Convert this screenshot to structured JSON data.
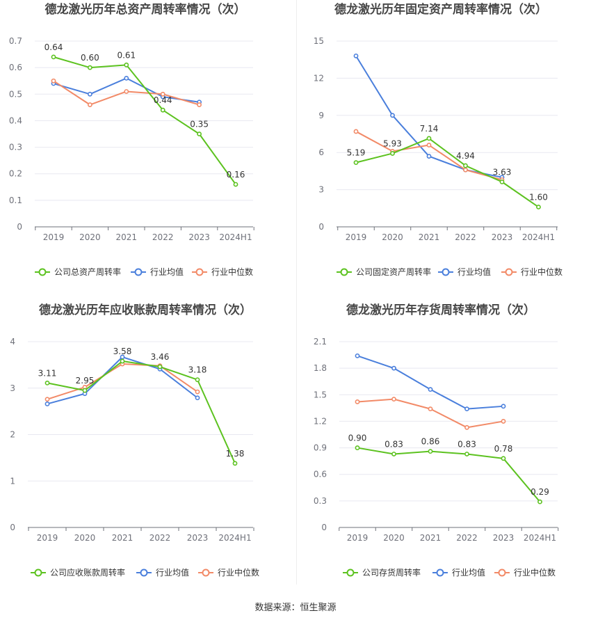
{
  "footer": {
    "source": "数据来源：恒生聚源"
  },
  "colors": {
    "company": "#5cc21f",
    "industry_avg": "#4a7fdc",
    "industry_median": "#f28a67",
    "grid": "#e8e8f0",
    "axis": "#6e7079"
  },
  "chart_data": [
    {
      "type": "line",
      "title": "德龙激光历年总资产周转率情况（次）",
      "categories": [
        "2019",
        "2020",
        "2021",
        "2022",
        "2023",
        "2024H1"
      ],
      "ylim": [
        0,
        0.7
      ],
      "yticks": [
        "0",
        "0.1",
        "0.2",
        "0.3",
        "0.4",
        "0.5",
        "0.6",
        "0.7"
      ],
      "series": [
        {
          "name": "公司总资产周转率",
          "values": [
            0.64,
            0.6,
            0.61,
            0.44,
            0.35,
            0.16
          ],
          "labels": [
            "0.64",
            "0.60",
            "0.61",
            "0.44",
            "0.35",
            "0.16"
          ]
        },
        {
          "name": "行业均值",
          "values": [
            0.54,
            0.5,
            0.56,
            0.49,
            0.47,
            null
          ]
        },
        {
          "name": "行业中位数",
          "values": [
            0.55,
            0.46,
            0.51,
            0.5,
            0.46,
            null
          ]
        }
      ]
    },
    {
      "type": "line",
      "title": "德龙激光历年固定资产周转率情况（次）",
      "categories": [
        "2019",
        "2020",
        "2021",
        "2022",
        "2023",
        "2024H1"
      ],
      "ylim": [
        0,
        15
      ],
      "yticks": [
        "0",
        "3",
        "6",
        "9",
        "12",
        "15"
      ],
      "series": [
        {
          "name": "公司固定资产周转率",
          "values": [
            5.19,
            5.93,
            7.14,
            4.94,
            3.63,
            1.6
          ],
          "labels": [
            "5.19",
            "5.93",
            "7.14",
            "4.94",
            "3.63",
            "1.60"
          ]
        },
        {
          "name": "行业均值",
          "values": [
            13.8,
            9.0,
            5.7,
            4.6,
            4.0,
            null
          ]
        },
        {
          "name": "行业中位数",
          "values": [
            7.7,
            6.1,
            6.6,
            4.6,
            3.8,
            null
          ]
        }
      ]
    },
    {
      "type": "line",
      "title": "德龙激光历年应收账款周转率情况（次）",
      "categories": [
        "2019",
        "2020",
        "2021",
        "2022",
        "2023",
        "2024H1"
      ],
      "ylim": [
        0,
        4
      ],
      "yticks": [
        "0",
        "1",
        "2",
        "3",
        "4"
      ],
      "series": [
        {
          "name": "公司应收账款周转率",
          "values": [
            3.11,
            2.95,
            3.58,
            3.46,
            3.18,
            1.38
          ],
          "labels": [
            "3.11",
            "2.95",
            "3.58",
            "3.46",
            "3.18",
            "1.38"
          ]
        },
        {
          "name": "行业均值",
          "values": [
            2.66,
            2.88,
            3.67,
            3.41,
            2.79,
            null
          ]
        },
        {
          "name": "行业中位数",
          "values": [
            2.76,
            3.02,
            3.52,
            3.48,
            2.92,
            null
          ]
        }
      ]
    },
    {
      "type": "line",
      "title": "德龙激光历年存货周转率情况（次）",
      "categories": [
        "2019",
        "2020",
        "2021",
        "2022",
        "2023",
        "2024H1"
      ],
      "ylim": [
        0,
        2.1
      ],
      "yticks": [
        "0",
        "0.3",
        "0.6",
        "0.9",
        "1.2",
        "1.5",
        "1.8",
        "2.1"
      ],
      "series": [
        {
          "name": "公司存货周转率",
          "values": [
            0.9,
            0.83,
            0.86,
            0.83,
            0.78,
            0.29
          ],
          "labels": [
            "0.90",
            "0.83",
            "0.86",
            "0.83",
            "0.78",
            "0.29"
          ]
        },
        {
          "name": "行业均值",
          "values": [
            1.94,
            1.8,
            1.56,
            1.34,
            1.37,
            null
          ]
        },
        {
          "name": "行业中位数",
          "values": [
            1.42,
            1.45,
            1.34,
            1.13,
            1.2,
            null
          ]
        }
      ]
    }
  ]
}
